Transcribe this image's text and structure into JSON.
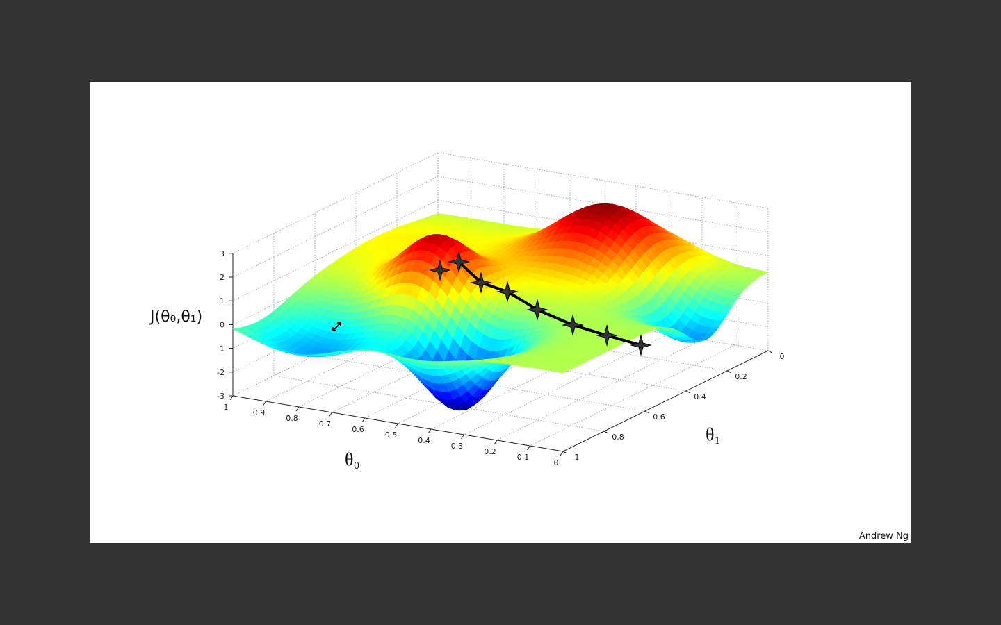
{
  "slide": {
    "z_label": "J(θ₀,θ₁)",
    "x_label": "θ₀",
    "y_label": "θ₁",
    "footer": "Andrew Ng",
    "theta0_ticks": [
      "1",
      "0.9",
      "0.8",
      "0.7",
      "0.6",
      "0.5",
      "0.4",
      "0.3",
      "0.2",
      "0.1",
      "0"
    ],
    "theta1_ticks": [
      "1",
      "0.8",
      "0.6",
      "0.4",
      "0.2",
      "0"
    ],
    "z_ticks": [
      "3",
      "2",
      "1",
      "0",
      "-1",
      "-2",
      "-3"
    ]
  }
}
